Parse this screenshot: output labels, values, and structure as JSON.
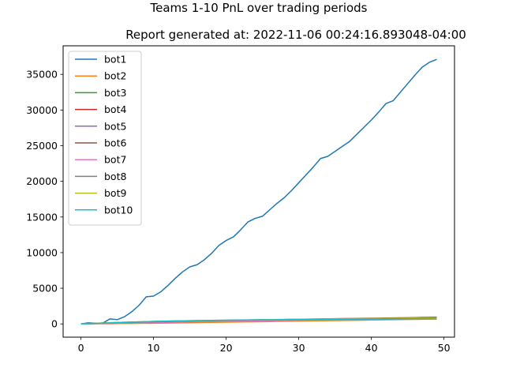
{
  "chart_data": {
    "type": "line",
    "title": "Teams 1-10 PnL over trading periods",
    "subtitle": "Report generated at: 2022-11-06 00:24:16.893048-04:00",
    "xlim": [
      -2.45,
      51.45
    ],
    "ylim": [
      -1858,
      39008
    ],
    "xticks": [
      0,
      10,
      20,
      30,
      40,
      50
    ],
    "yticks": [
      0,
      5000,
      10000,
      15000,
      20000,
      25000,
      30000,
      35000
    ],
    "grid": false,
    "legend_position": "upper left",
    "x": [
      0,
      1,
      2,
      3,
      4,
      5,
      6,
      7,
      8,
      9,
      10,
      11,
      12,
      13,
      14,
      15,
      16,
      17,
      18,
      19,
      20,
      21,
      22,
      23,
      24,
      25,
      26,
      27,
      28,
      29,
      30,
      31,
      32,
      33,
      34,
      35,
      36,
      37,
      38,
      39,
      40,
      41,
      42,
      43,
      44,
      45,
      46,
      47,
      48,
      49
    ],
    "series": [
      {
        "name": "bot1",
        "color": "#1f77b4",
        "values": [
          0,
          150,
          100,
          100,
          700,
          600,
          1000,
          1700,
          2600,
          3800,
          3900,
          4500,
          5400,
          6400,
          7300,
          8000,
          8300,
          9000,
          9900,
          11000,
          11700,
          12200,
          13200,
          14300,
          14800,
          15100,
          16000,
          16900,
          17700,
          18700,
          19800,
          20900,
          22000,
          23200,
          23500,
          24200,
          24900,
          25600,
          26600,
          27600,
          28600,
          29700,
          30900,
          31300,
          32500,
          33700,
          34900,
          36000,
          36700,
          37100
        ]
      },
      {
        "name": "bot2",
        "color": "#ff7f0e",
        "values": [
          0,
          10,
          20,
          30,
          40,
          50,
          60,
          70,
          80,
          90,
          100,
          110,
          125,
          140,
          155,
          170,
          185,
          200,
          215,
          230,
          245,
          260,
          275,
          290,
          305,
          320,
          335,
          350,
          365,
          380,
          395,
          410,
          425,
          440,
          455,
          470,
          485,
          500,
          515,
          530,
          545,
          560,
          575,
          590,
          605,
          620,
          635,
          650,
          665,
          680
        ]
      },
      {
        "name": "bot3",
        "color": "#2ca02c",
        "values": [
          0,
          50,
          90,
          130,
          170,
          200,
          230,
          260,
          290,
          320,
          340,
          370,
          400,
          410,
          430,
          440,
          450,
          460,
          470,
          480,
          490,
          500,
          510,
          515,
          520,
          530,
          535,
          540,
          550,
          555,
          560,
          570,
          580,
          590,
          600,
          610,
          620,
          630,
          640,
          650,
          660,
          670,
          680,
          690,
          700,
          710,
          720,
          730,
          740,
          750
        ]
      },
      {
        "name": "bot4",
        "color": "#d62728",
        "values": [
          0,
          20,
          40,
          60,
          80,
          100,
          120,
          140,
          160,
          180,
          200,
          220,
          240,
          260,
          280,
          300,
          320,
          340,
          360,
          380,
          400,
          420,
          440,
          460,
          480,
          500,
          520,
          540,
          560,
          580,
          600,
          615,
          630,
          645,
          660,
          675,
          690,
          705,
          720,
          735,
          750,
          765,
          780,
          795,
          810,
          825,
          840,
          855,
          870,
          885
        ]
      },
      {
        "name": "bot5",
        "color": "#9467bd",
        "values": [
          0,
          30,
          60,
          90,
          120,
          150,
          180,
          210,
          240,
          270,
          300,
          320,
          340,
          360,
          380,
          400,
          420,
          440,
          460,
          480,
          500,
          515,
          530,
          545,
          560,
          575,
          590,
          600,
          610,
          620,
          630,
          640,
          650,
          660,
          670,
          680,
          690,
          700,
          710,
          720,
          730,
          740,
          750,
          760,
          770,
          780,
          790,
          800,
          810,
          820
        ]
      },
      {
        "name": "bot6",
        "color": "#8c564b",
        "values": [
          0,
          25,
          50,
          75,
          100,
          125,
          150,
          175,
          200,
          225,
          250,
          270,
          290,
          310,
          330,
          350,
          370,
          390,
          410,
          430,
          450,
          470,
          490,
          510,
          530,
          550,
          570,
          590,
          610,
          630,
          650,
          665,
          680,
          695,
          710,
          725,
          740,
          755,
          770,
          785,
          800,
          815,
          830,
          845,
          860,
          875,
          890,
          905,
          920,
          935
        ]
      },
      {
        "name": "bot7",
        "color": "#e377c2",
        "values": [
          0,
          20,
          40,
          60,
          80,
          100,
          120,
          140,
          160,
          180,
          200,
          220,
          240,
          260,
          280,
          300,
          315,
          330,
          345,
          360,
          375,
          390,
          405,
          420,
          435,
          450,
          465,
          480,
          495,
          510,
          525,
          540,
          555,
          570,
          585,
          600,
          612,
          624,
          636,
          648,
          660,
          672,
          684,
          696,
          708,
          720,
          732,
          744,
          756,
          768
        ]
      },
      {
        "name": "bot8",
        "color": "#7f7f7f",
        "values": [
          0,
          30,
          60,
          90,
          120,
          150,
          180,
          210,
          240,
          270,
          290,
          310,
          330,
          350,
          370,
          390,
          410,
          430,
          450,
          470,
          490,
          505,
          520,
          535,
          550,
          565,
          580,
          595,
          610,
          625,
          640,
          650,
          660,
          670,
          680,
          690,
          700,
          710,
          720,
          730,
          740,
          750,
          760,
          770,
          780,
          790,
          800,
          810,
          820,
          830
        ]
      },
      {
        "name": "bot9",
        "color": "#bcbd22",
        "values": [
          0,
          40,
          80,
          120,
          160,
          200,
          230,
          260,
          290,
          320,
          350,
          370,
          390,
          410,
          430,
          450,
          465,
          480,
          495,
          510,
          525,
          540,
          555,
          570,
          585,
          600,
          612,
          624,
          636,
          648,
          660,
          670,
          680,
          690,
          700,
          710,
          720,
          730,
          740,
          750,
          760,
          768,
          776,
          784,
          792,
          800,
          808,
          816,
          824,
          832
        ]
      },
      {
        "name": "bot10",
        "color": "#17becf",
        "values": [
          0,
          35,
          70,
          105,
          140,
          175,
          210,
          245,
          280,
          315,
          340,
          365,
          390,
          410,
          430,
          450,
          465,
          480,
          495,
          510,
          525,
          535,
          545,
          555,
          565,
          575,
          585,
          595,
          605,
          615,
          625,
          635,
          645,
          655,
          660,
          665,
          670,
          675,
          680,
          685,
          690,
          695,
          700,
          705,
          710,
          715,
          720,
          725,
          730,
          735
        ]
      }
    ]
  }
}
